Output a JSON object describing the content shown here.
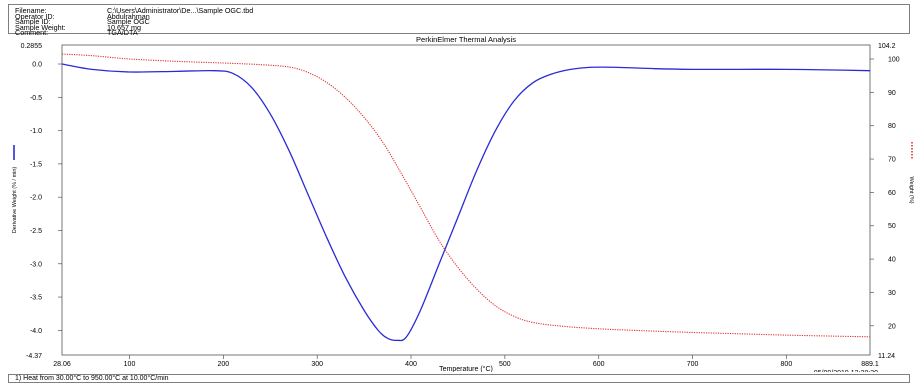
{
  "info": {
    "rows": [
      {
        "label": "Filename:",
        "value": "C:\\Users\\Administrator\\De...\\Sample OGC.tbd"
      },
      {
        "label": "Operator ID:",
        "value": "Abdulrahman"
      },
      {
        "label": "Sample ID:",
        "value": "Sample OGC"
      },
      {
        "label": "Sample Weight:",
        "value": "10.657 mg"
      },
      {
        "label": "Comment:",
        "value": "TGA/DTA"
      }
    ]
  },
  "footer": {
    "method": "1)  Heat from 30.00°C to 950.00°C at 10.00°C/min",
    "timestamp": "05/09/2019 12:28:30"
  },
  "chart_data": {
    "type": "line",
    "title": "PerkinElmer Thermal Analysis",
    "xlabel": "Temperature (°C)",
    "ylabel_left": "Derivative Weight (% / min)",
    "ylabel_right": "Weight (%)",
    "xlim": [
      28.06,
      889.1
    ],
    "ylim_left": [
      -4.37,
      0.2855
    ],
    "ylim_right": [
      11.24,
      104.2
    ],
    "x_ticks": [
      100,
      200,
      300,
      400,
      500,
      600,
      700,
      800
    ],
    "x_end_labels": [
      "28.06",
      "889.1"
    ],
    "y_left_ticks": [
      0.0,
      -0.5,
      -1.0,
      -1.5,
      -2.0,
      -2.5,
      -3.0,
      -3.5,
      -4.0
    ],
    "y_left_tick_labels": [
      "0.0",
      "-0.5",
      "-1.0",
      "-1.5",
      "-2.0",
      "-2.5",
      "-3.0",
      "-3.5",
      "-4.0"
    ],
    "y_left_end_labels": [
      "0.2855",
      "-4.37"
    ],
    "y_right_ticks": [
      20,
      30,
      40,
      50,
      60,
      70,
      80,
      90,
      100
    ],
    "y_right_tick_labels": [
      "20",
      "30",
      "40",
      "50",
      "60",
      "70",
      "80",
      "90",
      "100"
    ],
    "y_right_end_labels": [
      "104.2",
      "11.24"
    ],
    "grid": false,
    "series": [
      {
        "name": "Derivative Weight (% / min)",
        "axis": "left",
        "color": "#2b2bd6",
        "style": "solid",
        "x": [
          28.06,
          60,
          100,
          150,
          190,
          210,
          230,
          250,
          270,
          290,
          310,
          330,
          350,
          365,
          375,
          385,
          395,
          410,
          430,
          450,
          470,
          490,
          510,
          530,
          550,
          570,
          590,
          620,
          660,
          700,
          750,
          800,
          850,
          889.1
        ],
        "y": [
          0.0,
          -0.08,
          -0.12,
          -0.11,
          -0.1,
          -0.14,
          -0.35,
          -0.75,
          -1.3,
          -1.95,
          -2.6,
          -3.2,
          -3.7,
          -4.0,
          -4.12,
          -4.15,
          -4.1,
          -3.7,
          -3.0,
          -2.3,
          -1.6,
          -1.0,
          -0.55,
          -0.28,
          -0.15,
          -0.08,
          -0.05,
          -0.05,
          -0.07,
          -0.08,
          -0.08,
          -0.08,
          -0.09,
          -0.1
        ]
      },
      {
        "name": "Weight (%)",
        "axis": "right",
        "color": "#e03030",
        "style": "dotted",
        "x": [
          28.06,
          60,
          100,
          150,
          200,
          240,
          270,
          290,
          310,
          330,
          350,
          370,
          390,
          410,
          430,
          450,
          470,
          490,
          510,
          530,
          560,
          600,
          650,
          700,
          750,
          800,
          850,
          889.1
        ],
        "y": [
          101.5,
          101.0,
          100.0,
          99.3,
          98.8,
          98.3,
          97.6,
          96.0,
          93.0,
          88.5,
          82.5,
          75.0,
          65.5,
          55.5,
          45.5,
          37.5,
          31.0,
          26.0,
          22.8,
          21.0,
          19.9,
          19.1,
          18.5,
          18.0,
          17.6,
          17.2,
          16.9,
          16.7
        ]
      }
    ]
  }
}
